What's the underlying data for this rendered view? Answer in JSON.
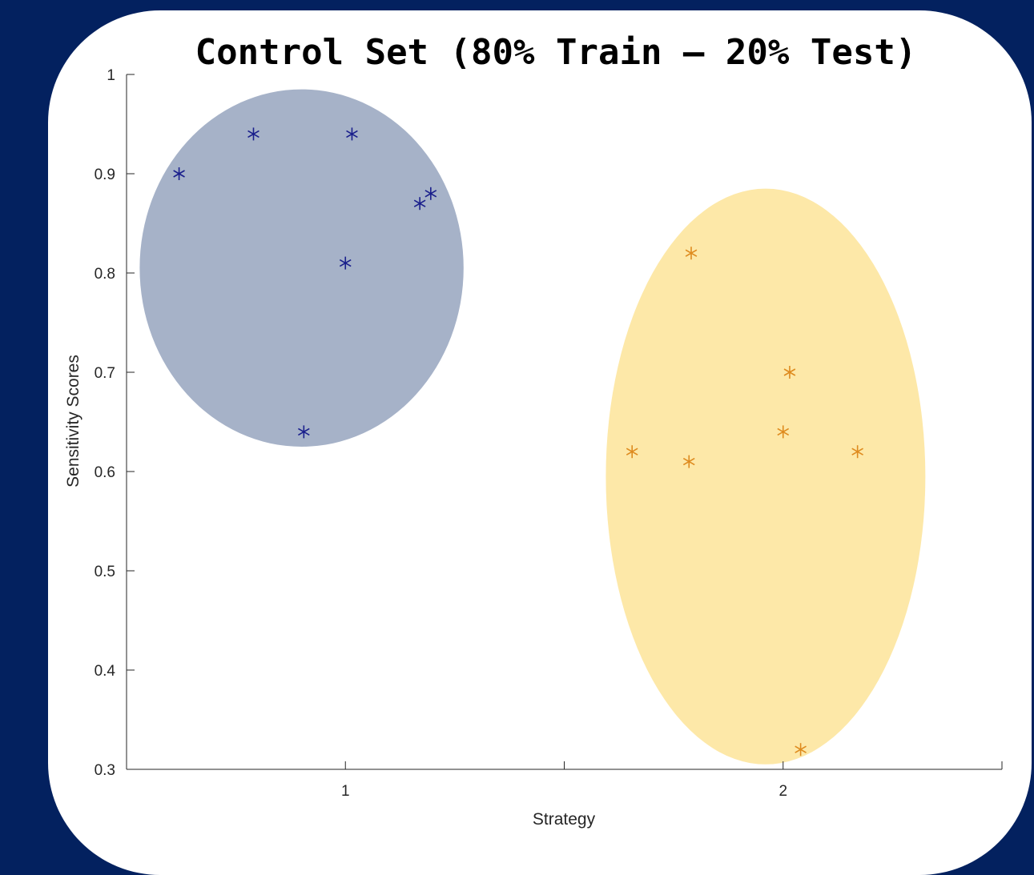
{
  "colors": {
    "background": "#03215f",
    "card": "#ffffff",
    "series1_marker": "#1a1f8c",
    "series1_region": "#a6b2c8",
    "series2_marker": "#de8b1f",
    "series2_region": "#fde8a8"
  },
  "chart_data": {
    "type": "scatter",
    "title": "Control Set (80% Train – 20% Test)",
    "xlabel": "Strategy",
    "ylabel": "Sensitivity Scores",
    "xlim": [
      0.5,
      2.5
    ],
    "ylim": [
      0.3,
      1.0
    ],
    "xticks": [
      {
        "value": 1,
        "label": "1"
      },
      {
        "value": 2,
        "label": "2"
      }
    ],
    "xminor_ticks": [
      1.5
    ],
    "yticks": [
      {
        "value": 0.3,
        "label": "0.3"
      },
      {
        "value": 0.4,
        "label": "0.4"
      },
      {
        "value": 0.5,
        "label": "0.5"
      },
      {
        "value": 0.6,
        "label": "0.6"
      },
      {
        "value": 0.7,
        "label": "0.7"
      },
      {
        "value": 0.8,
        "label": "0.8"
      },
      {
        "value": 0.9,
        "label": "0.9"
      },
      {
        "value": 1.0,
        "label": "1"
      }
    ],
    "grid": false,
    "marker": "asterisk",
    "series": [
      {
        "color": "#1a1f8c",
        "region_color": "#a6b2c8",
        "region": {
          "cx": 0.9,
          "cy": 0.805,
          "rx": 0.37,
          "ry": 0.18
        },
        "points": [
          {
            "x": 0.62,
            "y": 0.9
          },
          {
            "x": 0.79,
            "y": 0.94
          },
          {
            "x": 1.015,
            "y": 0.94
          },
          {
            "x": 1.17,
            "y": 0.87
          },
          {
            "x": 1.195,
            "y": 0.88
          },
          {
            "x": 1.0,
            "y": 0.81
          },
          {
            "x": 0.905,
            "y": 0.64
          }
        ]
      },
      {
        "color": "#de8b1f",
        "region_color": "#fde8a8",
        "region": {
          "cx": 1.96,
          "cy": 0.595,
          "rx": 0.365,
          "ry": 0.29
        },
        "points": [
          {
            "x": 1.79,
            "y": 0.82
          },
          {
            "x": 2.015,
            "y": 0.7
          },
          {
            "x": 2.0,
            "y": 0.64
          },
          {
            "x": 1.655,
            "y": 0.62
          },
          {
            "x": 1.785,
            "y": 0.61
          },
          {
            "x": 2.17,
            "y": 0.62
          },
          {
            "x": 2.04,
            "y": 0.32
          }
        ]
      }
    ]
  }
}
